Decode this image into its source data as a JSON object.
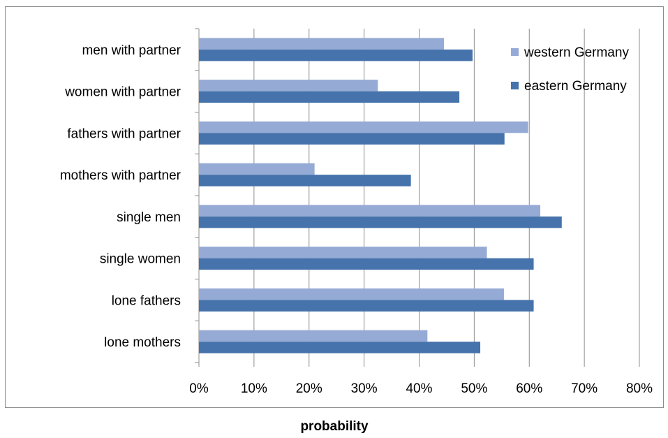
{
  "chart_data": {
    "type": "bar",
    "orientation": "horizontal",
    "categories": [
      "men with partner",
      "women with partner",
      "fathers with partner",
      "mothers with partner",
      "single men",
      "single women",
      "lone fathers",
      "lone mothers"
    ],
    "series": [
      {
        "name": "western Germany",
        "color": "#95abd5",
        "values": [
          44.5,
          32.5,
          59.8,
          21.0,
          62.0,
          52.3,
          55.4,
          41.5
        ]
      },
      {
        "name": "eastern Germany",
        "color": "#4673ab",
        "values": [
          49.7,
          47.3,
          55.5,
          38.5,
          65.9,
          60.8,
          60.8,
          51.1
        ]
      }
    ],
    "xlim": [
      0,
      80
    ],
    "xticks": [
      "0%",
      "10%",
      "20%",
      "30%",
      "40%",
      "50%",
      "60%",
      "70%",
      "80%"
    ],
    "xlabel": "probability",
    "ylabel": "",
    "grid": "vertical",
    "legend_position": "top-right"
  }
}
